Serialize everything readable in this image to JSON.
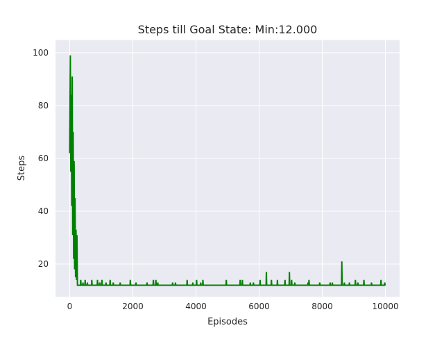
{
  "chart_data": {
    "type": "line",
    "title": "Steps till Goal State: Min:12.000",
    "xlabel": "Episodes",
    "ylabel": "Steps",
    "xlim": [
      -450,
      10450
    ],
    "ylim": [
      7.6,
      104.8
    ],
    "xticks": [
      0,
      2000,
      4000,
      6000,
      8000,
      10000
    ],
    "xtick_labels": [
      "0",
      "2000",
      "4000",
      "6000",
      "8000",
      "10000"
    ],
    "yticks": [
      20,
      40,
      60,
      80,
      100
    ],
    "ytick_labels": [
      "20",
      "40",
      "60",
      "80",
      "100"
    ],
    "grid": true,
    "legend": "none",
    "series": [
      {
        "color": "#008000",
        "baseline": 12,
        "points": [
          [
            0,
            62
          ],
          [
            20,
            99
          ],
          [
            35,
            55
          ],
          [
            50,
            84
          ],
          [
            65,
            42
          ],
          [
            80,
            91
          ],
          [
            95,
            31
          ],
          [
            110,
            70
          ],
          [
            125,
            22
          ],
          [
            140,
            59
          ],
          [
            155,
            18
          ],
          [
            170,
            45
          ],
          [
            185,
            15
          ],
          [
            200,
            33
          ],
          [
            215,
            14
          ],
          [
            230,
            31
          ],
          [
            245,
            12
          ],
          [
            260,
            12
          ]
        ],
        "spikes": [
          [
            350,
            14
          ],
          [
            420,
            13
          ],
          [
            490,
            14
          ],
          [
            560,
            13
          ],
          [
            700,
            14
          ],
          [
            880,
            14
          ],
          [
            950,
            13
          ],
          [
            1020,
            14
          ],
          [
            1150,
            13
          ],
          [
            1280,
            14
          ],
          [
            1380,
            13
          ],
          [
            1600,
            13
          ],
          [
            1920,
            14
          ],
          [
            2100,
            13
          ],
          [
            2450,
            13
          ],
          [
            2650,
            14
          ],
          [
            2730,
            14
          ],
          [
            2790,
            13
          ],
          [
            3260,
            13
          ],
          [
            3350,
            13
          ],
          [
            3720,
            14
          ],
          [
            3900,
            13
          ],
          [
            4020,
            14
          ],
          [
            4150,
            13
          ],
          [
            4220,
            14
          ],
          [
            4960,
            14
          ],
          [
            5400,
            14
          ],
          [
            5470,
            14
          ],
          [
            5720,
            13
          ],
          [
            5820,
            13
          ],
          [
            6030,
            14
          ],
          [
            6230,
            17
          ],
          [
            6390,
            14
          ],
          [
            6580,
            14
          ],
          [
            6820,
            14
          ],
          [
            6960,
            17
          ],
          [
            7030,
            14
          ],
          [
            7130,
            13
          ],
          [
            7550,
            13
          ],
          [
            7580,
            14
          ],
          [
            7920,
            13
          ],
          [
            8250,
            13
          ],
          [
            8320,
            13
          ],
          [
            8620,
            21
          ],
          [
            8700,
            13
          ],
          [
            8860,
            13
          ],
          [
            9050,
            14
          ],
          [
            9130,
            13
          ],
          [
            9320,
            14
          ],
          [
            9560,
            13
          ],
          [
            9860,
            14
          ],
          [
            9980,
            13
          ]
        ],
        "x_end": 10000
      }
    ]
  }
}
